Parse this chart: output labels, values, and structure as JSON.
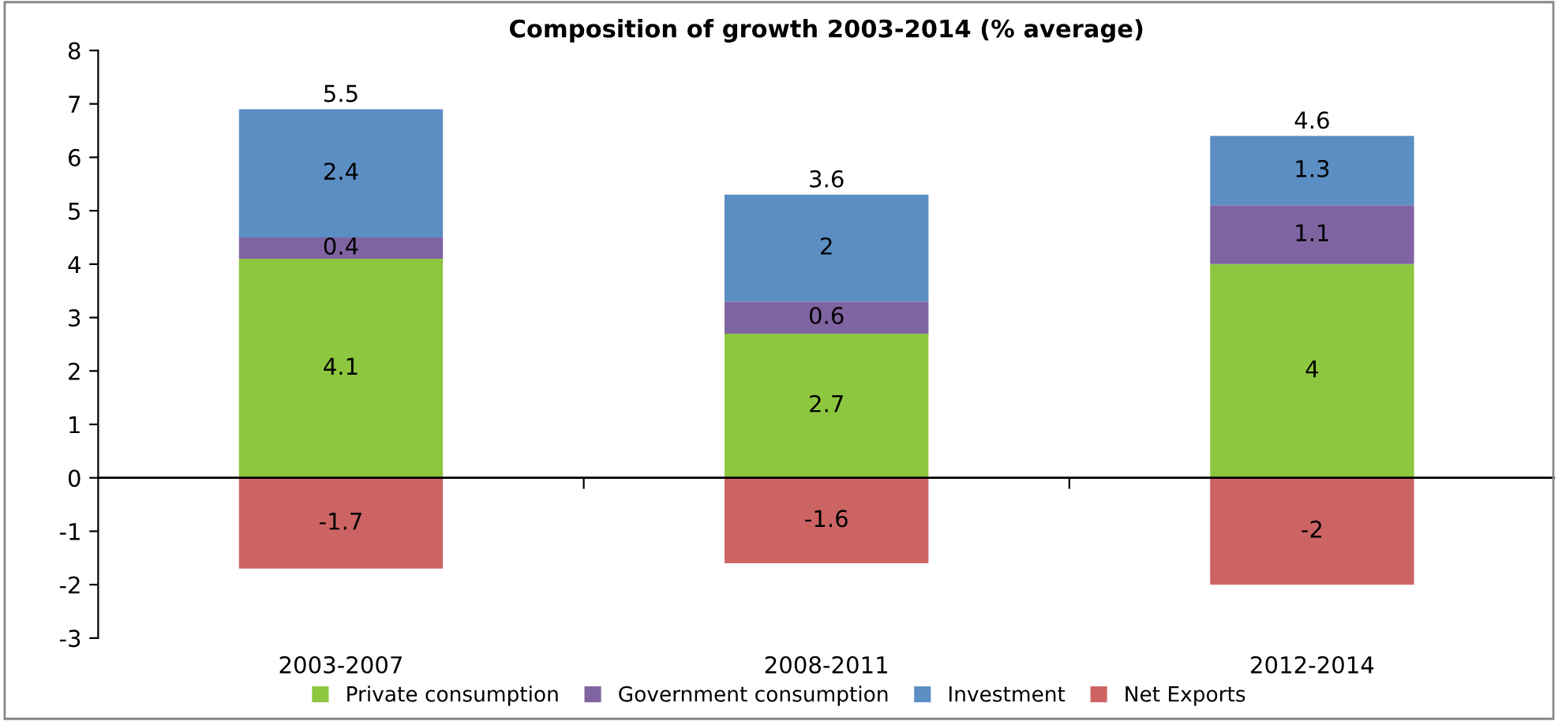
{
  "chart_data": {
    "type": "bar",
    "title": "Composition of growth 2003-2014 (% average)",
    "categories": [
      "2003-2007",
      "2008-2011",
      "2012-2014"
    ],
    "stacked": true,
    "series": [
      {
        "name": "Private consumption",
        "color": "#8dc63f",
        "values": [
          4.1,
          2.7,
          4
        ]
      },
      {
        "name": "Government consumption",
        "color": "#8064a2",
        "values": [
          0.4,
          0.6,
          1.1
        ]
      },
      {
        "name": "Investment",
        "color": "#5b8ec3",
        "values": [
          2.4,
          2,
          1.3
        ]
      },
      {
        "name": "Net Exports",
        "color": "#cd6464",
        "values": [
          -1.7,
          -1.6,
          -2
        ]
      }
    ],
    "annotations": [
      {
        "text": "5.5",
        "x": "2003-2007",
        "y": 6.9
      },
      {
        "text": "3.6",
        "x": "2008-2011",
        "y": 5.3
      },
      {
        "text": "4.6",
        "x": "2012-2014",
        "y": 6.4
      }
    ],
    "data_labels": true,
    "ylim": [
      -3,
      8
    ],
    "yticks": [
      -3,
      -2,
      -1,
      0,
      1,
      2,
      3,
      4,
      5,
      6,
      7,
      8
    ],
    "ref_lines": [
      {
        "axis": "y",
        "value": 0,
        "color": "#000000"
      }
    ],
    "grid": false,
    "legend": "bottom"
  }
}
